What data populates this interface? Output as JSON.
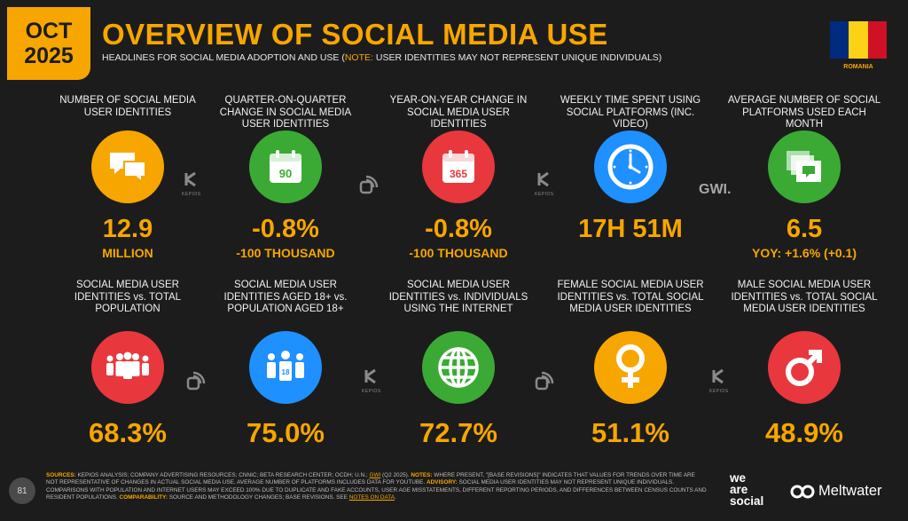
{
  "header": {
    "month": "OCT",
    "year": "2025",
    "title": "OVERVIEW OF SOCIAL MEDIA USE",
    "subtitle_main": "HEADLINES FOR SOCIAL MEDIA ADOPTION AND USE (",
    "subtitle_note": "NOTE:",
    "subtitle_rest": " USER IDENTITIES MAY NOT REPRESENT UNIQUE INDIVIDUALS)",
    "country": "ROMANIA",
    "flag_colors": [
      "#002b7f",
      "#fcd116",
      "#ce1126"
    ]
  },
  "colors": {
    "accent": "#f7a600",
    "orange": "#f7a600",
    "green": "#3aaa35",
    "red": "#e8383d",
    "blue": "#1e90ff"
  },
  "row1": [
    {
      "label": "NUMBER OF SOCIAL MEDIA USER IDENTITIES",
      "icon": "speech-bubbles-icon",
      "color": "#f7a600",
      "value": "12.9",
      "sub": "MILLION"
    },
    {
      "label": "QUARTER-ON-QUARTER CHANGE IN SOCIAL MEDIA USER IDENTITIES",
      "icon": "calendar-90-icon",
      "icon_text": "90",
      "color": "#3aaa35",
      "value": "-0.8%",
      "sub": "-100 THOUSAND"
    },
    {
      "label": "YEAR-ON-YEAR CHANGE IN SOCIAL MEDIA USER IDENTITIES",
      "icon": "calendar-365-icon",
      "icon_text": "365",
      "color": "#e8383d",
      "value": "-0.8%",
      "sub": "-100 THOUSAND"
    },
    {
      "label": "WEEKLY TIME SPENT USING SOCIAL PLATFORMS (INC. VIDEO)",
      "icon": "clock-icon",
      "color": "#1e90ff",
      "value": "17H 51M",
      "sub": ""
    },
    {
      "label": "AVERAGE NUMBER OF SOCIAL PLATFORMS USED EACH MONTH",
      "icon": "stacked-screens-icon",
      "color": "#3aaa35",
      "value": "6.5",
      "sub": "YOY: +1.6% (+0.1)"
    }
  ],
  "row2": [
    {
      "label": "SOCIAL MEDIA USER IDENTITIES vs. TOTAL POPULATION",
      "icon": "crowd-icon",
      "color": "#e8383d",
      "value": "68.3%"
    },
    {
      "label": "SOCIAL MEDIA USER IDENTITIES AGED 18+ vs. POPULATION AGED 18+",
      "icon": "adults-18-icon",
      "icon_text": "18",
      "color": "#1e90ff",
      "value": "75.0%"
    },
    {
      "label": "SOCIAL MEDIA USER IDENTITIES vs. INDIVIDUALS USING THE INTERNET",
      "icon": "globe-icon",
      "color": "#3aaa35",
      "value": "72.7%"
    },
    {
      "label": "FEMALE SOCIAL MEDIA USER IDENTITIES vs. TOTAL SOCIAL MEDIA USER IDENTITIES",
      "icon": "female-symbol-icon",
      "color": "#f7a600",
      "value": "51.1%"
    },
    {
      "label": "MALE SOCIAL MEDIA USER IDENTITIES vs. TOTAL SOCIAL MEDIA USER IDENTITIES",
      "icon": "male-symbol-icon",
      "color": "#e8383d",
      "value": "48.9%"
    }
  ],
  "source_logos": {
    "kepios": "KEPIOS",
    "gwi": "GWI."
  },
  "footer": {
    "page_number": "81",
    "sources_label": "SOURCES:",
    "sources_text": " KEPIOS ANALYSIS; COMPANY ADVERTISING RESOURCES; CNNIC; BETA RESEARCH CENTER; OCDH; U.N.; ",
    "gwi_link": "GWI",
    "sources_text2": " (Q2 2025). ",
    "notes_label": "NOTES:",
    "notes_text": " WHERE PRESENT, \"[BASE REVISIONS]\" INDICATES THAT VALUES FOR TRENDS OVER TIME ARE NOT REPRESENTATIVE OF CHANGES IN ACTUAL SOCIAL MEDIA USE. AVERAGE NUMBER OF PLATFORMS INCLUDES DATA FOR YOUTUBE. ",
    "advisory_label": "ADVISORY:",
    "advisory_text": " SOCIAL MEDIA USER IDENTITIES MAY NOT REPRESENT UNIQUE INDIVIDUALS. COMPARISONS WITH POPULATION AND INTERNET USERS MAY EXCEED 100% DUE TO DUPLICATE AND FAKE ACCOUNTS, USER AGE MISSTATEMENTS, DIFFERENT REPORTING PERIODS, AND DIFFERENCES BETWEEN CENSUS COUNTS AND RESIDENT POPULATIONS. ",
    "comparability_label": "COMPARABILITY:",
    "comparability_text": " SOURCE AND METHODOLOGY CHANGES; BASE REVISIONS. SEE ",
    "notes_on_data_link": "NOTES ON DATA",
    "end": ".",
    "brand1_l1": "we",
    "brand1_l2": "are",
    "brand1_l3": "social",
    "brand2": "Meltwater"
  }
}
